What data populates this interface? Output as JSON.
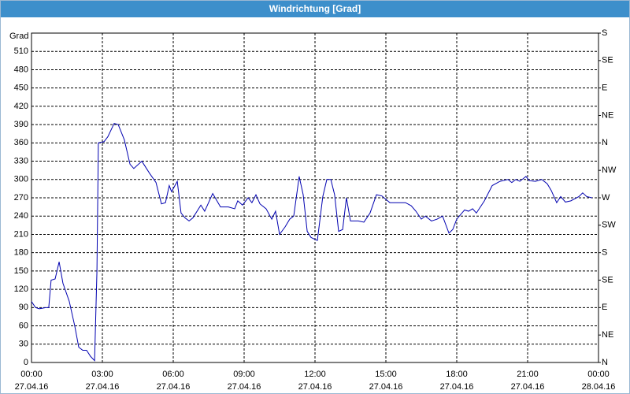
{
  "window_title": "Windrichtung [Grad]",
  "chart_data": {
    "type": "line",
    "ylabel": "Grad",
    "xlim": [
      0,
      24
    ],
    "xticks": [
      {
        "value": 0,
        "label": "00:00"
      },
      {
        "value": 3,
        "label": "03:00"
      },
      {
        "value": 6,
        "label": "06:00"
      },
      {
        "value": 9,
        "label": "09:00"
      },
      {
        "value": 12,
        "label": "12:00"
      },
      {
        "value": 15,
        "label": "15:00"
      },
      {
        "value": 18,
        "label": "18:00"
      },
      {
        "value": 21,
        "label": "21:00"
      },
      {
        "value": 24,
        "label": "00:00"
      }
    ],
    "xtick_dates": [
      "27.04.16",
      "27.04.16",
      "27.04.16",
      "27.04.16",
      "27.04.16",
      "27.04.16",
      "27.04.16",
      "27.04.16",
      "28.04.16"
    ],
    "ylim": [
      0,
      540
    ],
    "yticks": [
      0,
      30,
      60,
      90,
      120,
      150,
      180,
      210,
      240,
      270,
      300,
      330,
      360,
      390,
      420,
      450,
      480,
      510
    ],
    "y2lim": [
      0,
      540
    ],
    "y2ticks": [
      {
        "value": 0,
        "label": "N"
      },
      {
        "value": 45,
        "label": "NE"
      },
      {
        "value": 90,
        "label": "E"
      },
      {
        "value": 135,
        "label": "SE"
      },
      {
        "value": 180,
        "label": "S"
      },
      {
        "value": 225,
        "label": "SW"
      },
      {
        "value": 270,
        "label": "W"
      },
      {
        "value": 315,
        "label": "NW"
      },
      {
        "value": 360,
        "label": "N"
      },
      {
        "value": 405,
        "label": "NE"
      },
      {
        "value": 450,
        "label": "E"
      },
      {
        "value": 495,
        "label": "SE"
      },
      {
        "value": 540,
        "label": "S"
      }
    ],
    "grid": true,
    "series": [
      {
        "color": "#0000b0",
        "x": [
          0,
          0.17,
          0.33,
          0.6,
          0.73,
          0.83,
          1,
          1.17,
          1.33,
          1.6,
          1.83,
          2,
          2.17,
          2.33,
          2.5,
          2.67,
          2.77,
          2.83,
          3.07,
          3.23,
          3.5,
          3.67,
          3.93,
          4.17,
          4.33,
          4.67,
          5,
          5.27,
          5.5,
          5.67,
          5.83,
          5.93,
          6.17,
          6.33,
          6.5,
          6.67,
          6.83,
          7.17,
          7.33,
          7.67,
          8,
          8.33,
          8.6,
          8.73,
          8.93,
          9.17,
          9.33,
          9.5,
          9.67,
          9.93,
          10.17,
          10.33,
          10.5,
          10.73,
          10.93,
          11.1,
          11.33,
          11.5,
          11.67,
          11.83,
          12.1,
          12.33,
          12.5,
          12.67,
          12.83,
          13,
          13.17,
          13.33,
          13.5,
          13.83,
          14.07,
          14.33,
          14.6,
          14.83,
          15.17,
          15.5,
          15.83,
          16.07,
          16.27,
          16.5,
          16.67,
          16.93,
          17.17,
          17.4,
          17.67,
          17.83,
          18,
          18.33,
          18.5,
          18.67,
          18.83,
          19.17,
          19.5,
          19.83,
          20.17,
          20.33,
          20.5,
          20.67,
          20.93,
          21.07,
          21.33,
          21.6,
          21.83,
          22,
          22.23,
          22.4,
          22.6,
          22.83,
          23.17,
          23.33,
          23.5,
          23.73
        ],
        "values": [
          100,
          90,
          88,
          90,
          90,
          135,
          137,
          165,
          130,
          100,
          60,
          25,
          20,
          20,
          10,
          3,
          150,
          360,
          362,
          370,
          392,
          390,
          365,
          325,
          318,
          330,
          310,
          295,
          260,
          262,
          290,
          280,
          297,
          245,
          237,
          232,
          237,
          258,
          248,
          277,
          255,
          255,
          252,
          265,
          258,
          270,
          262,
          275,
          260,
          252,
          235,
          248,
          210,
          222,
          235,
          240,
          305,
          275,
          215,
          205,
          200,
          272,
          300,
          300,
          275,
          215,
          218,
          270,
          232,
          232,
          230,
          245,
          275,
          273,
          262,
          262,
          262,
          257,
          248,
          235,
          240,
          232,
          235,
          240,
          212,
          218,
          235,
          250,
          248,
          252,
          245,
          265,
          290,
          297,
          300,
          295,
          300,
          297,
          305,
          298,
          297,
          300,
          293,
          282,
          262,
          272,
          263,
          265,
          272,
          278,
          272,
          270
        ]
      }
    ]
  }
}
